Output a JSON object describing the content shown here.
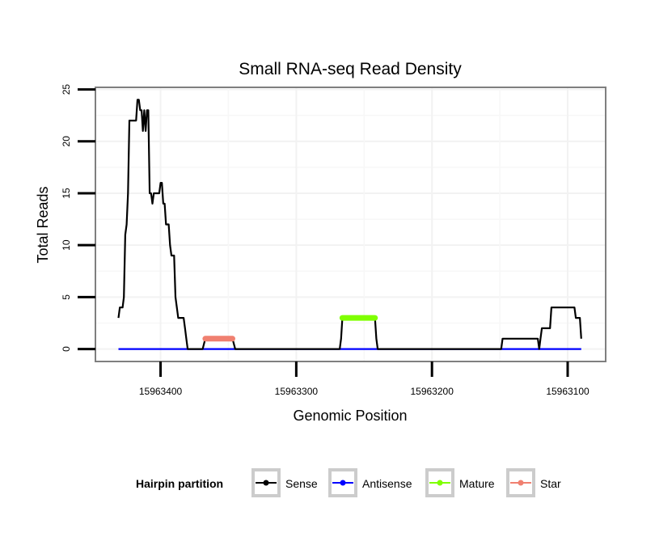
{
  "chart_data": {
    "type": "line",
    "title": "Small RNA-seq Read Density",
    "xlabel": "Genomic Position",
    "ylabel": "Total Reads",
    "xlim": [
      15963448,
      15963072
    ],
    "ylim": [
      -1.2,
      25.2
    ],
    "x_reversed": true,
    "x_ticks": [
      15963400,
      15963300,
      15963200,
      15963100
    ],
    "x_tick_labels": [
      "15963400",
      "15963300",
      "15963200",
      "15963100"
    ],
    "y_ticks": [
      0,
      5,
      10,
      15,
      20,
      25
    ],
    "y_tick_labels": [
      "0",
      "5",
      "10",
      "15",
      "20",
      "25"
    ],
    "grid": true,
    "legend": {
      "title": "Hairpin partition",
      "position": "bottom",
      "entries": [
        {
          "name": "Sense",
          "color": "#000000"
        },
        {
          "name": "Antisense",
          "color": "#0000ff"
        },
        {
          "name": "Mature",
          "color": "#7fff00"
        },
        {
          "name": "Star",
          "color": "#f08070"
        }
      ]
    },
    "series": [
      {
        "name": "Sense",
        "color": "#000000",
        "points": [
          [
            15963431,
            3
          ],
          [
            15963430,
            4
          ],
          [
            15963428,
            4
          ],
          [
            15963427,
            5
          ],
          [
            15963426,
            11
          ],
          [
            15963425,
            12
          ],
          [
            15963424,
            15
          ],
          [
            15963423,
            22
          ],
          [
            15963418,
            22
          ],
          [
            15963417,
            24
          ],
          [
            15963416,
            24
          ],
          [
            15963415,
            23
          ],
          [
            15963414,
            23
          ],
          [
            15963413,
            21
          ],
          [
            15963412,
            23
          ],
          [
            15963411,
            21
          ],
          [
            15963410,
            23
          ],
          [
            15963409,
            23
          ],
          [
            15963408,
            15
          ],
          [
            15963407,
            15
          ],
          [
            15963406,
            14
          ],
          [
            15963405,
            15
          ],
          [
            15963401,
            15
          ],
          [
            15963400,
            16
          ],
          [
            15963399,
            16
          ],
          [
            15963398,
            14
          ],
          [
            15963397,
            14
          ],
          [
            15963396,
            12
          ],
          [
            15963394,
            12
          ],
          [
            15963393,
            10
          ],
          [
            15963392,
            9
          ],
          [
            15963390,
            9
          ],
          [
            15963389,
            5
          ],
          [
            15963388,
            4
          ],
          [
            15963387,
            3
          ],
          [
            15963383,
            3
          ],
          [
            15963382,
            2
          ],
          [
            15963381,
            1
          ],
          [
            15963380,
            0
          ],
          [
            15963370,
            0
          ],
          [
            15963369,
            0
          ],
          [
            15963367,
            1
          ],
          [
            15963347,
            1
          ],
          [
            15963345,
            0
          ],
          [
            15963268,
            0
          ],
          [
            15963267,
            1
          ],
          [
            15963266,
            3
          ],
          [
            15963242,
            3
          ],
          [
            15963241,
            1
          ],
          [
            15963240,
            0
          ],
          [
            15963149,
            0
          ],
          [
            15963148,
            1
          ],
          [
            15963122,
            1
          ],
          [
            15963121,
            0
          ],
          [
            15963120,
            1
          ],
          [
            15963119,
            2
          ],
          [
            15963113,
            2
          ],
          [
            15963112,
            4
          ],
          [
            15963095,
            4
          ],
          [
            15963094,
            3
          ],
          [
            15963091,
            3
          ],
          [
            15963090,
            1
          ]
        ]
      },
      {
        "name": "Antisense",
        "color": "#0000ff",
        "points": [
          [
            15963431,
            0
          ],
          [
            15963090,
            0
          ]
        ]
      },
      {
        "name": "Mature",
        "color": "#7fff00",
        "points": [
          [
            15963266,
            3
          ],
          [
            15963242,
            3
          ]
        ]
      },
      {
        "name": "Star",
        "color": "#f08070",
        "points": [
          [
            15963367,
            1
          ],
          [
            15963347,
            1
          ]
        ]
      }
    ]
  }
}
